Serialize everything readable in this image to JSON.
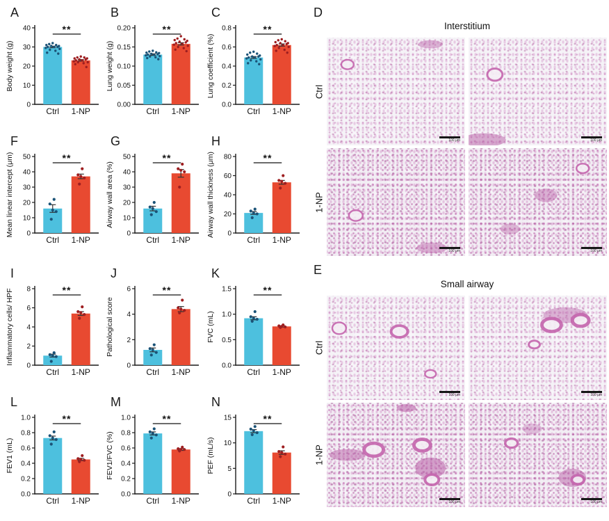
{
  "style": {
    "bars": [
      "#4DC0DE",
      "#E84A31"
    ],
    "dots": [
      "#1B5377",
      "#9E1E20"
    ],
    "axis": "#1a1a1a",
    "sig_line": "#3a3a3a"
  },
  "chart_data": [
    {
      "type": "bar",
      "panel": "A",
      "ylabel": "Body weight (g)",
      "categories": [
        "Ctrl",
        "1-NP"
      ],
      "values": [
        30,
        23
      ],
      "sem": [
        0.4,
        0.4
      ],
      "ylim": [
        0,
        40
      ],
      "yticks": [
        "0",
        "10",
        "20",
        "30",
        "40"
      ],
      "significance": "**",
      "points": [
        [
          32,
          31.5,
          31,
          31,
          30.5,
          30.5,
          30,
          30,
          30,
          29.5,
          29,
          28.5,
          28,
          27,
          26.5
        ],
        [
          25,
          24.5,
          24.5,
          24,
          24,
          23.5,
          23.5,
          23,
          23,
          22.5,
          22,
          22,
          21.5,
          21,
          19.5
        ]
      ]
    },
    {
      "type": "bar",
      "panel": "B",
      "ylabel": "Lung weight (g)",
      "categories": [
        "Ctrl",
        "1-NP"
      ],
      "values": [
        0.13,
        0.158
      ],
      "sem": [
        0.002,
        0.003
      ],
      "ylim": [
        0,
        0.2
      ],
      "yticks": [
        "0.00",
        "0.05",
        "0.10",
        "0.15",
        "0.20"
      ],
      "significance": "**",
      "points": [
        [
          0.14,
          0.138,
          0.136,
          0.135,
          0.134,
          0.132,
          0.131,
          0.13,
          0.129,
          0.128,
          0.126,
          0.125,
          0.123,
          0.121,
          0.118
        ],
        [
          0.178,
          0.172,
          0.17,
          0.168,
          0.166,
          0.164,
          0.162,
          0.16,
          0.158,
          0.156,
          0.153,
          0.15,
          0.147,
          0.143,
          0.139
        ]
      ]
    },
    {
      "type": "bar",
      "panel": "C",
      "ylabel": "Lung coefficient (%)",
      "categories": [
        "Ctrl",
        "1-NP"
      ],
      "values": [
        0.49,
        0.62
      ],
      "sem": [
        0.01,
        0.012
      ],
      "ylim": [
        0,
        0.8
      ],
      "yticks": [
        "0.0",
        "0.2",
        "0.4",
        "0.6",
        "0.8"
      ],
      "significance": "**",
      "points": [
        [
          0.55,
          0.54,
          0.53,
          0.52,
          0.51,
          0.5,
          0.5,
          0.49,
          0.49,
          0.48,
          0.47,
          0.46,
          0.45,
          0.43,
          0.42
        ],
        [
          0.68,
          0.67,
          0.66,
          0.65,
          0.64,
          0.64,
          0.63,
          0.62,
          0.62,
          0.61,
          0.6,
          0.59,
          0.57,
          0.56,
          0.54
        ]
      ]
    },
    {
      "type": "bar",
      "panel": "F",
      "ylabel": "Mean linear intercept (μm)",
      "categories": [
        "Ctrl",
        "1-NP"
      ],
      "values": [
        16,
        37
      ],
      "sem": [
        2.5,
        1.5
      ],
      "ylim": [
        0,
        50
      ],
      "yticks": [
        "0",
        "10",
        "20",
        "30",
        "40",
        "50"
      ],
      "significance": "**",
      "points": [
        [
          22,
          19,
          15,
          14,
          9
        ],
        [
          42,
          38,
          37,
          36,
          32
        ]
      ]
    },
    {
      "type": "bar",
      "panel": "G",
      "ylabel": "Airway wall area (%)",
      "categories": [
        "Ctrl",
        "1-NP"
      ],
      "values": [
        16,
        39
      ],
      "sem": [
        1.5,
        2.5
      ],
      "ylim": [
        0,
        50
      ],
      "yticks": [
        "0",
        "10",
        "20",
        "30",
        "40",
        "50"
      ],
      "significance": "**",
      "points": [
        [
          20,
          17,
          16,
          14,
          12
        ],
        [
          45,
          42,
          41,
          40,
          30
        ]
      ]
    },
    {
      "type": "bar",
      "panel": "H",
      "ylabel": "Airway wall thickness (μm)",
      "categories": [
        "Ctrl",
        "1-NP"
      ],
      "values": [
        21,
        53
      ],
      "sem": [
        1.5,
        2
      ],
      "ylim": [
        0,
        80
      ],
      "yticks": [
        "0",
        "20",
        "40",
        "60",
        "80"
      ],
      "significance": "**",
      "points": [
        [
          25,
          23,
          21,
          20,
          16
        ],
        [
          60,
          55,
          54,
          52,
          47
        ]
      ]
    },
    {
      "type": "bar",
      "panel": "I",
      "ylabel": "Inflammatory cells/ HPF",
      "categories": [
        "Ctrl",
        "1-NP"
      ],
      "values": [
        1.0,
        5.4
      ],
      "sem": [
        0.15,
        0.2
      ],
      "ylim": [
        0,
        8
      ],
      "yticks": [
        "0",
        "2",
        "4",
        "6",
        "8"
      ],
      "significance": "**",
      "points": [
        [
          1.3,
          1.1,
          1.0,
          0.9,
          0.4
        ],
        [
          6.1,
          5.6,
          5.5,
          5.3,
          4.9
        ]
      ]
    },
    {
      "type": "bar",
      "panel": "J",
      "ylabel": "Pathological score",
      "categories": [
        "Ctrl",
        "1-NP"
      ],
      "values": [
        1.2,
        4.4
      ],
      "sem": [
        0.15,
        0.2
      ],
      "ylim": [
        0,
        6
      ],
      "yticks": [
        "0",
        "2",
        "4",
        "6"
      ],
      "significance": "**",
      "points": [
        [
          1.6,
          1.3,
          1.2,
          1.0,
          0.8
        ],
        [
          5.1,
          4.5,
          4.4,
          4.3,
          4.1
        ]
      ]
    },
    {
      "type": "bar",
      "panel": "K",
      "ylabel": "FVC (mL)",
      "categories": [
        "Ctrl",
        "1-NP"
      ],
      "values": [
        0.92,
        0.76
      ],
      "sem": [
        0.03,
        0.012
      ],
      "ylim": [
        0,
        1.5
      ],
      "yticks": [
        "0.0",
        "0.5",
        "1.0",
        "1.5"
      ],
      "significance": "**",
      "points": [
        [
          1.05,
          0.95,
          0.92,
          0.9,
          0.86
        ],
        [
          0.79,
          0.77,
          0.76,
          0.75,
          0.74
        ]
      ]
    },
    {
      "type": "bar",
      "panel": "L",
      "ylabel": "FEV1 (mL)",
      "categories": [
        "Ctrl",
        "1-NP"
      ],
      "values": [
        0.73,
        0.45
      ],
      "sem": [
        0.025,
        0.015
      ],
      "ylim": [
        0,
        1.0
      ],
      "yticks": [
        "0.0",
        "0.2",
        "0.4",
        "0.6",
        "0.8",
        "1.0"
      ],
      "significance": "**",
      "points": [
        [
          0.81,
          0.76,
          0.73,
          0.71,
          0.65
        ],
        [
          0.5,
          0.46,
          0.45,
          0.44,
          0.42
        ]
      ]
    },
    {
      "type": "bar",
      "panel": "M",
      "ylabel": "FEV1/FVC (%)",
      "categories": [
        "Ctrl",
        "1-NP"
      ],
      "values": [
        0.79,
        0.58
      ],
      "sem": [
        0.02,
        0.012
      ],
      "ylim": [
        0,
        1.0
      ],
      "yticks": [
        "0.0",
        "0.2",
        "0.4",
        "0.6",
        "0.8",
        "1.0"
      ],
      "significance": "**",
      "points": [
        [
          0.85,
          0.81,
          0.79,
          0.77,
          0.73
        ],
        [
          0.61,
          0.59,
          0.58,
          0.58,
          0.56
        ]
      ]
    },
    {
      "type": "bar",
      "panel": "N",
      "ylabel": "PEF (mL/s)",
      "categories": [
        "Ctrl",
        "1-NP"
      ],
      "values": [
        12.3,
        8.1
      ],
      "sem": [
        0.3,
        0.35
      ],
      "ylim": [
        0,
        15
      ],
      "yticks": [
        "0",
        "5",
        "10",
        "15"
      ],
      "significance": "**",
      "points": [
        [
          13.2,
          12.7,
          12.4,
          12.0,
          11.6
        ],
        [
          9.2,
          8.3,
          8.1,
          7.8,
          7.3
        ]
      ]
    }
  ],
  "histology": [
    {
      "letter": "D",
      "title": "Interstitium",
      "row_labels": [
        "Ctrl",
        "1-NP"
      ],
      "scalebar": "100 μm"
    },
    {
      "letter": "E",
      "title": "Small airway",
      "row_labels": [
        "Ctrl",
        "1-NP"
      ],
      "scalebar": "100 μm"
    }
  ]
}
